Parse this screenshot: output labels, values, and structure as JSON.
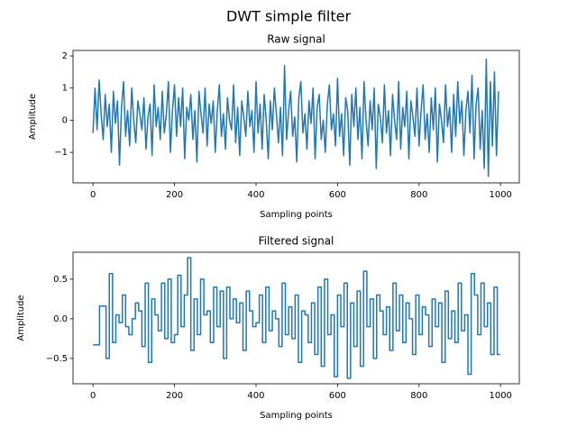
{
  "title": "DWT simple filter",
  "chart_data": [
    {
      "type": "line",
      "title": "Raw signal",
      "xlabel": "Sampling points",
      "ylabel": "Amplitude",
      "color": "#1f77b4",
      "xlim": [
        -49,
        1046
      ],
      "ylim": [
        -1.95,
        2.17
      ],
      "xticks": [
        0,
        200,
        400,
        600,
        800,
        1000
      ],
      "yticks": [
        {
          "value": -1,
          "label": "−1"
        },
        0,
        1,
        2
      ],
      "x": [
        0,
        5,
        10,
        15,
        20,
        25,
        30,
        35,
        40,
        45,
        50,
        55,
        60,
        65,
        70,
        75,
        80,
        85,
        90,
        95,
        100,
        105,
        110,
        115,
        120,
        125,
        130,
        135,
        140,
        145,
        150,
        155,
        160,
        165,
        170,
        175,
        180,
        185,
        190,
        195,
        200,
        205,
        210,
        215,
        220,
        225,
        230,
        235,
        240,
        245,
        250,
        255,
        260,
        265,
        270,
        275,
        280,
        285,
        290,
        295,
        300,
        305,
        310,
        315,
        320,
        325,
        330,
        335,
        340,
        345,
        350,
        355,
        360,
        365,
        370,
        375,
        380,
        385,
        390,
        395,
        400,
        405,
        410,
        415,
        420,
        425,
        430,
        435,
        440,
        445,
        450,
        455,
        460,
        465,
        470,
        475,
        480,
        485,
        490,
        495,
        500,
        505,
        510,
        515,
        520,
        525,
        530,
        535,
        540,
        545,
        550,
        555,
        560,
        565,
        570,
        575,
        580,
        585,
        590,
        595,
        600,
        605,
        610,
        615,
        620,
        625,
        630,
        635,
        640,
        645,
        650,
        655,
        660,
        665,
        670,
        675,
        680,
        685,
        690,
        695,
        700,
        705,
        710,
        715,
        720,
        725,
        730,
        735,
        740,
        745,
        750,
        755,
        760,
        765,
        770,
        775,
        780,
        785,
        790,
        795,
        800,
        805,
        810,
        815,
        820,
        825,
        830,
        835,
        840,
        845,
        850,
        855,
        860,
        865,
        870,
        875,
        880,
        885,
        890,
        895,
        900,
        905,
        910,
        915,
        920,
        925,
        930,
        935,
        940,
        945,
        950,
        955,
        960,
        965,
        970,
        975,
        980,
        985,
        990,
        995
      ],
      "values": [
        -0.4,
        1.0,
        -0.3,
        1.25,
        0.2,
        -0.6,
        0.8,
        -0.2,
        0.5,
        -1.0,
        0.9,
        -0.1,
        0.6,
        -1.4,
        0.4,
        1.2,
        -0.5,
        0.3,
        -0.8,
        1.0,
        0.0,
        -0.7,
        0.6,
        0.2,
        -0.3,
        0.7,
        -0.9,
        0.1,
        0.5,
        -1.1,
        1.1,
        -0.2,
        0.4,
        -0.6,
        0.9,
        -0.4,
        0.2,
        1.2,
        -1.0,
        0.3,
        1.1,
        -0.5,
        0.7,
        -0.2,
        1.0,
        -1.2,
        0.4,
        0.0,
        0.8,
        -0.6,
        0.3,
        -1.3,
        0.9,
        0.2,
        -0.4,
        1.0,
        -0.8,
        0.5,
        -0.1,
        0.6,
        -1.0,
        0.3,
        1.1,
        -0.5,
        0.2,
        -0.9,
        0.7,
        0.0,
        -0.3,
        1.1,
        -0.7,
        0.4,
        -1.1,
        0.6,
        0.1,
        -0.5,
        0.9,
        -0.2,
        0.3,
        -1.0,
        1.2,
        -0.4,
        0.5,
        -0.9,
        0.8,
        0.0,
        -1.2,
        0.6,
        -0.3,
        1.0,
        0.2,
        -0.7,
        0.4,
        -1.1,
        1.7,
        -0.6,
        0.3,
        0.9,
        -0.5,
        0.1,
        -1.3,
        0.7,
        1.2,
        -0.4,
        0.2,
        -0.9,
        0.6,
        -0.1,
        1.0,
        -1.2,
        0.4,
        0.8,
        -0.6,
        0.0,
        -1.0,
        0.5,
        1.1,
        -0.3,
        0.2,
        -0.8,
        1.3,
        -0.5,
        0.2,
        -1.1,
        0.7,
        0.3,
        -1.4,
        0.8,
        -0.2,
        1.0,
        -0.6,
        0.4,
        -1.2,
        1.2,
        0.0,
        -0.8,
        0.6,
        -0.3,
        1.0,
        -1.5,
        0.5,
        0.1,
        -0.7,
        1.1,
        -0.4,
        0.3,
        -1.1,
        0.8,
        0.0,
        -0.6,
        1.2,
        -0.9,
        0.4,
        -0.2,
        0.9,
        -1.2,
        0.6,
        0.1,
        -0.5,
        1.0,
        -0.8,
        0.3,
        1.1,
        -0.6,
        0.2,
        -1.0,
        0.7,
        -0.3,
        1.0,
        -1.3,
        0.5,
        0.0,
        -0.7,
        1.1,
        -0.2,
        0.4,
        -1.0,
        0.8,
        -0.5,
        1.2,
        -0.1,
        0.6,
        -1.1,
        0.3,
        0.9,
        -0.4,
        1.4,
        -1.2,
        0.5,
        1.0,
        -0.9,
        0.3,
        -1.5,
        1.9,
        -1.75,
        1.2,
        -0.8,
        1.5,
        -1.1,
        0.9
      ]
    },
    {
      "type": "line",
      "drawstyle": "steps-post",
      "title": "Filtered signal",
      "xlabel": "Sampling points",
      "ylabel": "Amplitude",
      "color": "#1f77b4",
      "xlim": [
        -49,
        1046
      ],
      "ylim": [
        -0.82,
        0.84
      ],
      "xticks": [
        0,
        200,
        400,
        600,
        800,
        1000
      ],
      "yticks": [
        {
          "value": -0.5,
          "label": "−0.5"
        },
        {
          "value": 0,
          "label": "0.0"
        },
        0.5
      ],
      "x": [
        0,
        8,
        16,
        24,
        32,
        40,
        48,
        56,
        64,
        72,
        80,
        88,
        96,
        104,
        112,
        120,
        128,
        136,
        144,
        152,
        160,
        168,
        176,
        184,
        192,
        200,
        208,
        216,
        224,
        232,
        240,
        248,
        256,
        264,
        272,
        280,
        288,
        296,
        304,
        312,
        320,
        328,
        336,
        344,
        352,
        360,
        368,
        376,
        384,
        392,
        400,
        408,
        416,
        424,
        432,
        440,
        448,
        456,
        464,
        472,
        480,
        488,
        496,
        504,
        512,
        520,
        528,
        536,
        544,
        552,
        560,
        568,
        576,
        584,
        592,
        600,
        608,
        616,
        624,
        632,
        640,
        648,
        656,
        664,
        672,
        680,
        688,
        696,
        704,
        712,
        720,
        728,
        736,
        744,
        752,
        760,
        768,
        776,
        784,
        792,
        800,
        808,
        816,
        824,
        832,
        840,
        848,
        856,
        864,
        872,
        880,
        888,
        896,
        904,
        912,
        920,
        928,
        936,
        944,
        952,
        960,
        968,
        976,
        984,
        992,
        999
      ],
      "values": [
        -0.33,
        -0.33,
        0.16,
        0.16,
        -0.5,
        0.57,
        -0.3,
        0.05,
        -0.05,
        0.3,
        -0.1,
        -0.2,
        0.0,
        0.2,
        0.1,
        -0.35,
        0.45,
        -0.55,
        0.25,
        0.05,
        -0.15,
        0.45,
        -0.25,
        0.5,
        -0.3,
        -0.2,
        0.55,
        -0.1,
        0.3,
        0.77,
        -0.4,
        0.25,
        -0.2,
        0.5,
        0.05,
        0.1,
        -0.3,
        0.4,
        -0.1,
        0.35,
        -0.5,
        0.4,
        0.0,
        0.25,
        -0.05,
        0.2,
        -0.4,
        0.35,
        0.1,
        -0.1,
        -0.05,
        0.3,
        -0.3,
        0.4,
        -0.15,
        0.1,
        0.0,
        -0.35,
        0.45,
        -0.2,
        0.15,
        -0.25,
        0.3,
        -0.55,
        0.1,
        0.05,
        -0.3,
        0.2,
        -0.45,
        0.4,
        -0.6,
        0.5,
        -0.2,
        0.05,
        -0.73,
        0.3,
        -0.1,
        0.45,
        -0.75,
        0.2,
        -0.35,
        0.35,
        -0.6,
        0.6,
        -0.1,
        0.25,
        -0.5,
        0.3,
        0.1,
        -0.2,
        0.15,
        -0.4,
        0.45,
        -0.15,
        0.3,
        -0.3,
        0.2,
        0.0,
        -0.45,
        0.3,
        -0.2,
        0.15,
        0.05,
        -0.35,
        0.25,
        -0.1,
        0.2,
        -0.55,
        0.35,
        -0.25,
        0.1,
        -0.3,
        0.45,
        -0.15,
        0.05,
        -0.7,
        0.57,
        0.3,
        -0.2,
        0.45,
        -0.1,
        0.2,
        -0.45,
        0.4,
        -0.45,
        -0.45
      ]
    }
  ]
}
